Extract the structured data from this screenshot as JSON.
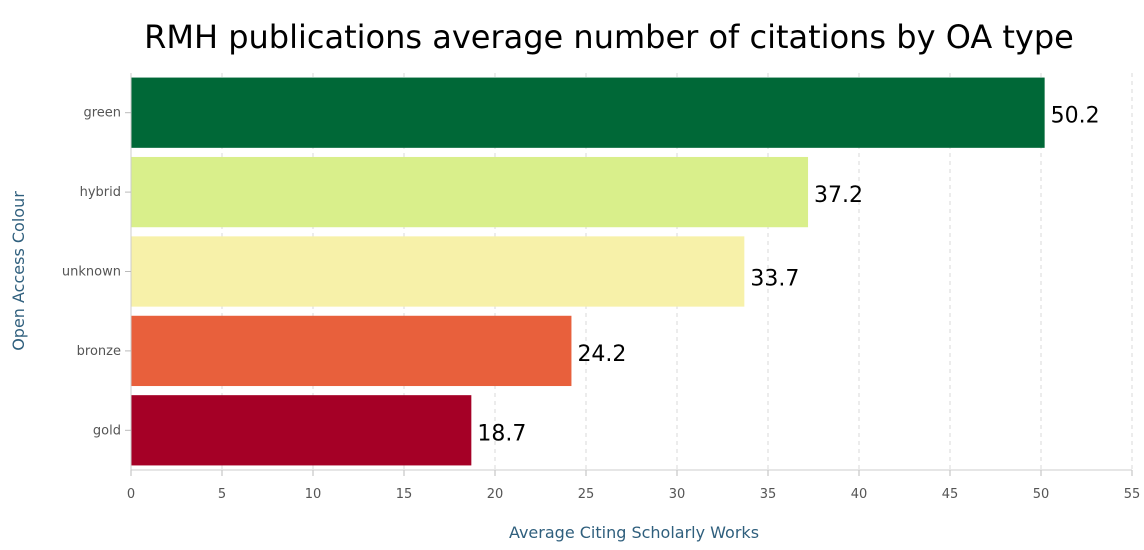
{
  "chart_data": {
    "type": "bar",
    "orientation": "horizontal",
    "title": "RMH publications average number of citations by OA type",
    "xlabel": "Average Citing Scholarly Works",
    "ylabel": "Open Access Colour",
    "categories": [
      "green",
      "hybrid",
      "unknown",
      "bronze",
      "gold"
    ],
    "values": [
      50.2,
      37.2,
      33.7,
      24.2,
      18.7
    ],
    "data_labels": [
      "50.2",
      "37.2",
      "33.7",
      "24.2",
      "18.7"
    ],
    "colors": [
      "#006837",
      "#d9ef8b",
      "#f7f1a9",
      "#e8603c",
      "#a50026"
    ],
    "xlim": [
      0,
      55
    ],
    "xticks": [
      0,
      5,
      10,
      15,
      20,
      25,
      30,
      35,
      40,
      45,
      50,
      55
    ],
    "grid": "vertical dashed",
    "legend": "none"
  }
}
